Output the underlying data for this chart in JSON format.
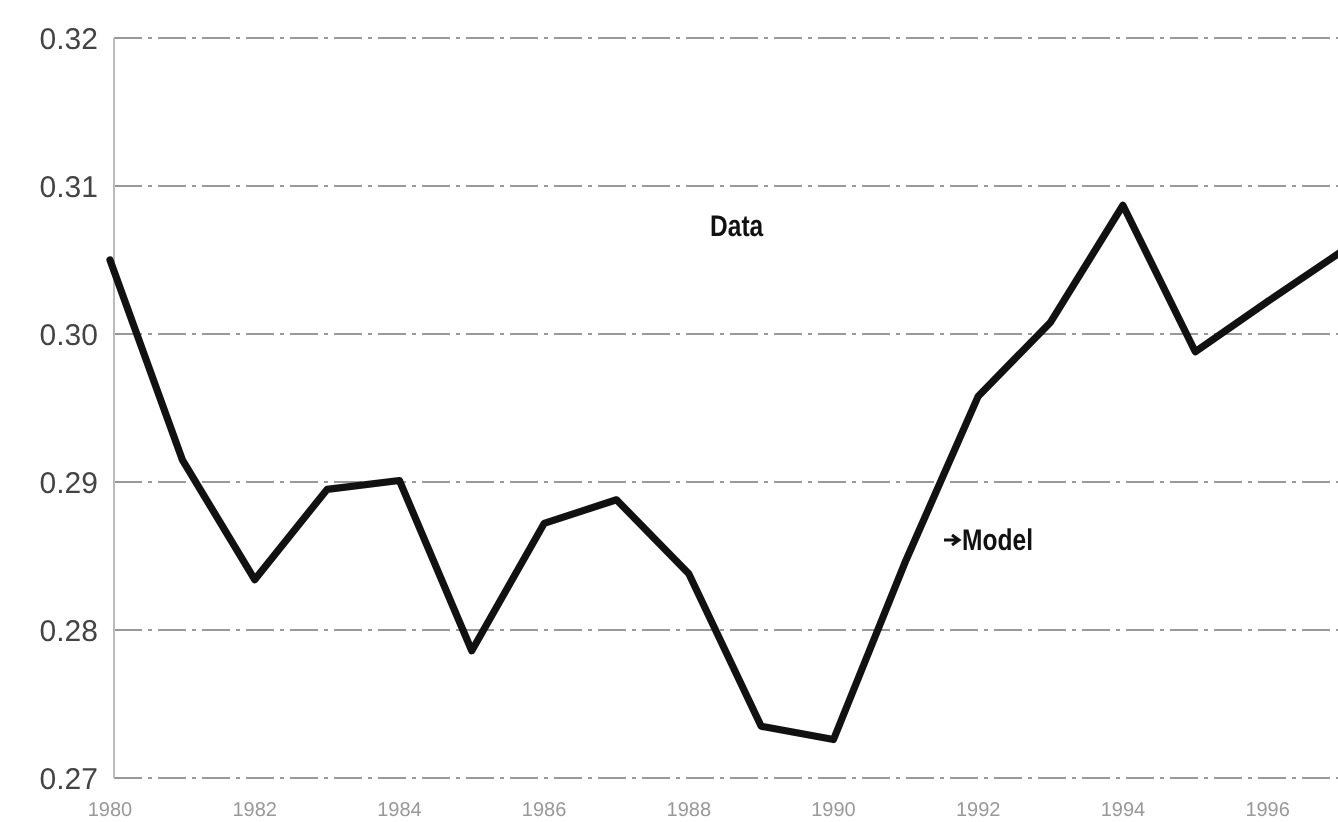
{
  "chart_data": {
    "type": "line",
    "x": [
      1980,
      1981,
      1982,
      1983,
      1984,
      1985,
      1986,
      1987,
      1988,
      1989,
      1990,
      1991,
      1992,
      1993,
      1994,
      1995,
      1996,
      1997
    ],
    "series": [
      {
        "color": "#111111",
        "values": [
          0.305,
          0.2915,
          0.2834,
          0.2895,
          0.2901,
          0.2786,
          0.2872,
          0.2888,
          0.2838,
          0.2735,
          0.2726,
          0.2847,
          0.2958,
          0.3008,
          0.3087,
          0.2988,
          0.3022,
          0.3055
        ]
      }
    ],
    "xlim": [
      1980,
      1997
    ],
    "xticks": [
      1980,
      1982,
      1984,
      1986,
      1988,
      1990,
      1992,
      1994,
      1996
    ],
    "ylim": [
      0.27,
      0.32
    ],
    "yticks": [
      {
        "value": 0.27,
        "label": "0.27"
      },
      {
        "value": 0.28,
        "label": "0.28"
      },
      {
        "value": 0.29,
        "label": "0.29"
      },
      {
        "value": 0.3,
        "label": "0.30"
      },
      {
        "value": 0.31,
        "label": "0.31"
      },
      {
        "value": 0.32,
        "label": "0.32"
      }
    ],
    "grid": "y",
    "marker": "none",
    "line_style": "solid",
    "annotations": [
      "Data",
      "Model"
    ]
  }
}
